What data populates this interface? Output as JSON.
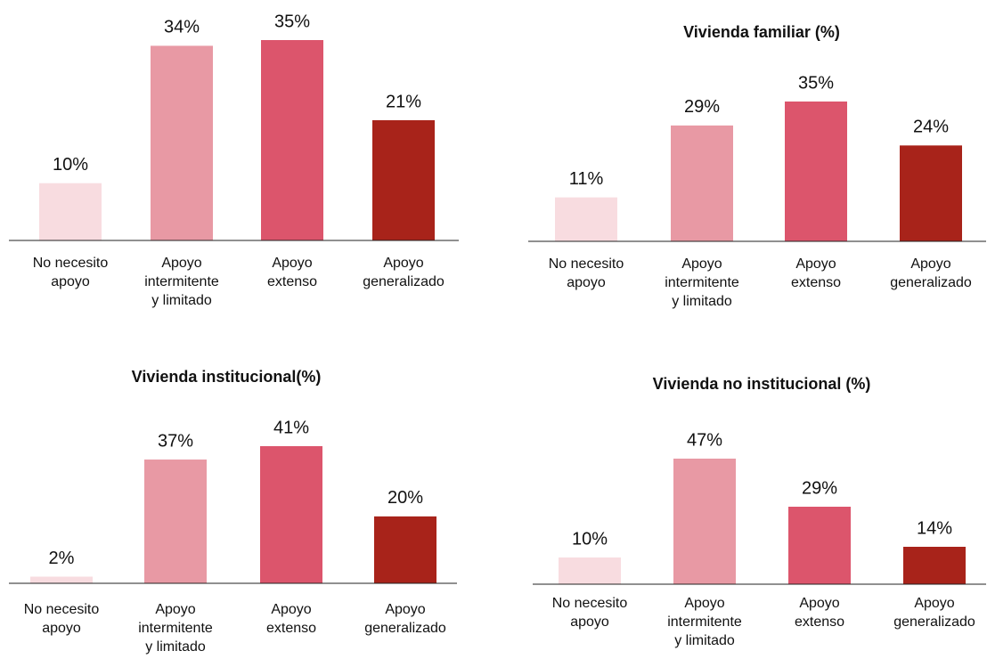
{
  "chart_data": [
    {
      "type": "bar",
      "categories": [
        [
          "No necesito",
          "apoyo"
        ],
        [
          "Apoyo",
          "intermitente",
          "y limitado"
        ],
        [
          "Apoyo",
          "extenso"
        ],
        [
          "Apoyo",
          "generalizado"
        ]
      ],
      "values": [
        10,
        34,
        35,
        21
      ],
      "value_labels": [
        "10%",
        "34%",
        "35%",
        "21%"
      ],
      "colors": [
        "#f8dce0",
        "#e899a4",
        "#dc556c",
        "#a8231a"
      ]
    },
    {
      "type": "bar",
      "title": "Vivienda familiar (%)",
      "categories": [
        [
          "No necesito",
          "apoyo"
        ],
        [
          "Apoyo",
          "intermitente",
          "y limitado"
        ],
        [
          "Apoyo",
          "extenso"
        ],
        [
          "Apoyo",
          "generalizado"
        ]
      ],
      "values": [
        11,
        29,
        35,
        24
      ],
      "value_labels": [
        "11%",
        "29%",
        "35%",
        "24%"
      ],
      "colors": [
        "#f8dce0",
        "#e899a4",
        "#dc556c",
        "#a8231a"
      ]
    },
    {
      "type": "bar",
      "title": "Vivienda institucional(%)",
      "categories": [
        [
          "No necesito",
          "apoyo"
        ],
        [
          "Apoyo",
          "intermitente",
          "y limitado"
        ],
        [
          "Apoyo",
          "extenso"
        ],
        [
          "Apoyo",
          "generalizado"
        ]
      ],
      "values": [
        2,
        37,
        41,
        20
      ],
      "value_labels": [
        "2%",
        "37%",
        "41%",
        "20%"
      ],
      "colors": [
        "#f8dce0",
        "#e899a4",
        "#dc556c",
        "#a8231a"
      ]
    },
    {
      "type": "bar",
      "title": "Vivienda no institucional (%)",
      "categories": [
        [
          "No necesito",
          "apoyo"
        ],
        [
          "Apoyo",
          "intermitente",
          "y limitado"
        ],
        [
          "Apoyo",
          "extenso"
        ],
        [
          "Apoyo",
          "generalizado"
        ]
      ],
      "values": [
        10,
        47,
        29,
        14
      ],
      "value_labels": [
        "10%",
        "47%",
        "29%",
        "14%"
      ],
      "colors": [
        "#f8dce0",
        "#e899a4",
        "#dc556c",
        "#a8231a"
      ]
    }
  ]
}
